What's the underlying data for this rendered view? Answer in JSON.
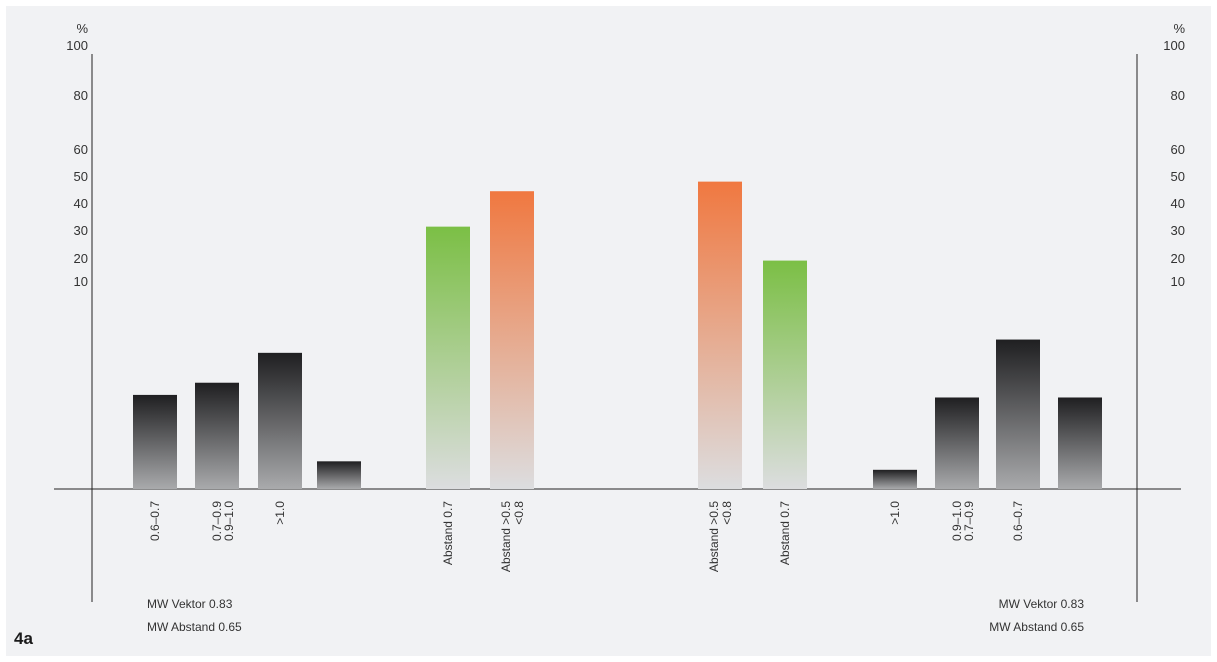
{
  "figure_label": "4a",
  "colors": {
    "background": "#f1f2f4",
    "axis": "#222222",
    "dark_top": "#1f1f21",
    "dark_bottom": "#a9aaac",
    "green_top": "#7bbf45",
    "orange_top": "#f07840",
    "light_bottom": "#dcdddf"
  },
  "chart_data": [
    {
      "type": "bar",
      "panel": "left",
      "y_unit": "%",
      "yticks": [
        10,
        20,
        30,
        40,
        50,
        60,
        80,
        100
      ],
      "ytick_labels": [
        "10",
        "20",
        "30",
        "40",
        "50",
        "60",
        "80",
        "100"
      ],
      "scale_note": "non-linear axis: bars not readable against ticks; values are estimated heights relative to the 100 % mark",
      "bars": [
        {
          "label": "0.6–0.7",
          "value": 25.5,
          "group": "dark"
        },
        {
          "label": "0.7–0.9",
          "value": 28.8,
          "group": "dark"
        },
        {
          "label": "0.9–1.0",
          "value": "",
          "group": "dark",
          "label_only": true
        },
        {
          "label": ">1.0",
          "value": 36.9,
          "group": "dark"
        },
        {
          "label": "",
          "value": 7.5,
          "group": "dark"
        },
        {
          "label": "Abstand 0.7",
          "label2": "",
          "value": 71.1,
          "group": "green"
        },
        {
          "label": "Abstand >0.5",
          "label2": "<0.8",
          "value": 80.7,
          "group": "orange"
        }
      ],
      "notes": [
        "MW Vektor 0.83",
        "MW Abstand 0.65"
      ]
    },
    {
      "type": "bar",
      "panel": "right",
      "y_unit": "%",
      "yticks": [
        10,
        20,
        30,
        40,
        50,
        60,
        80,
        100
      ],
      "ytick_labels": [
        "10",
        "20",
        "30",
        "40",
        "50",
        "60",
        "80",
        "100"
      ],
      "scale_note": "mirrored chart; non-linear axis",
      "bars": [
        {
          "label": "Abstand >0.5",
          "label2": "<0.8",
          "value": 83.3,
          "group": "orange"
        },
        {
          "label": "Abstand 0.7",
          "label2": "",
          "value": 61.9,
          "group": "green"
        },
        {
          "label": ">1.0",
          "value": 5.2,
          "group": "dark"
        },
        {
          "label": "0.9–1.0",
          "value": 24.8,
          "group": "dark"
        },
        {
          "label": "0.7–0.9",
          "value": "",
          "group": "dark",
          "label_only": true
        },
        {
          "label": "0.6–0.7",
          "value": 40.5,
          "group": "dark"
        },
        {
          "label": "",
          "value": 24.8,
          "group": "dark"
        }
      ],
      "notes": [
        "MW Vektor 0.83",
        "MW Abstand 0.65"
      ]
    }
  ]
}
